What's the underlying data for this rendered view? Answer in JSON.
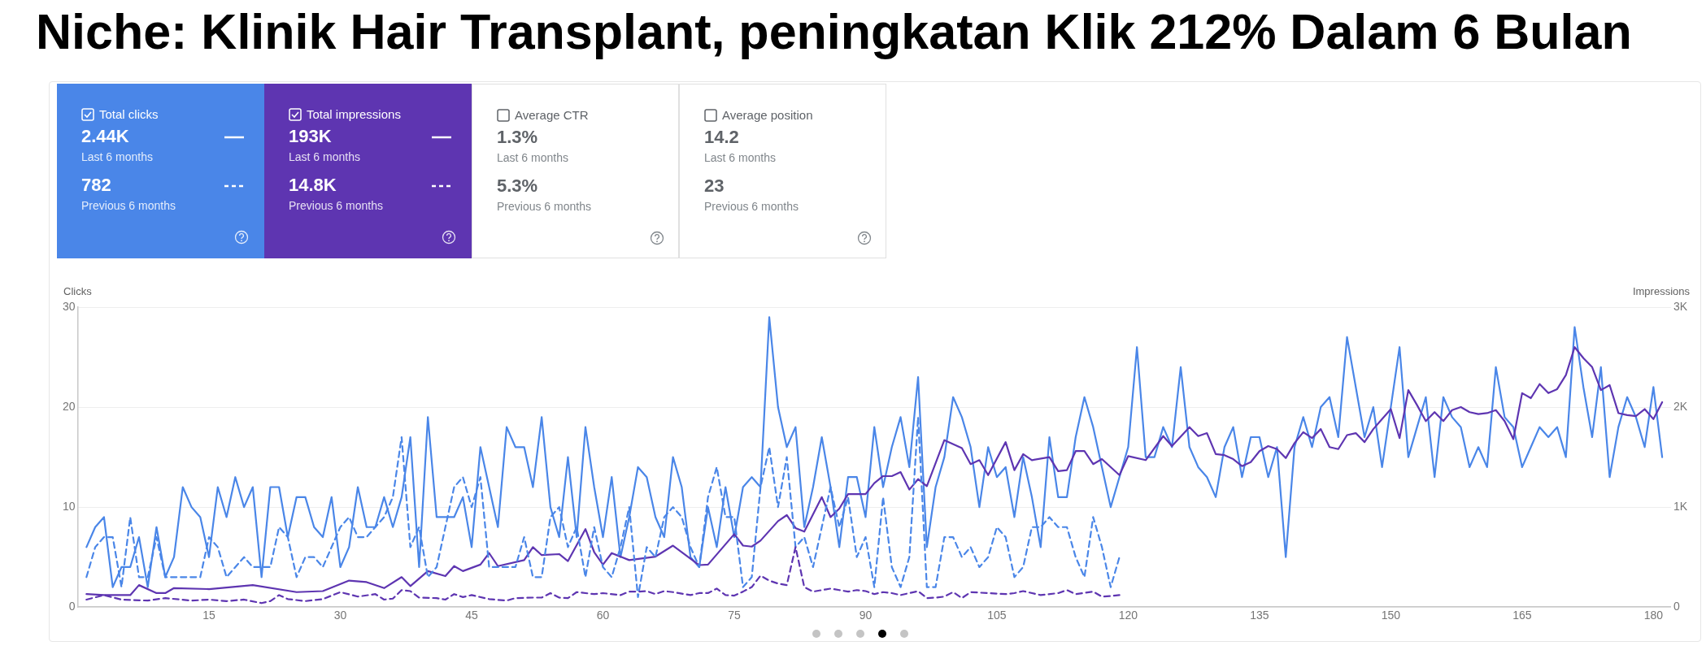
{
  "chart_data": [
    {
      "type": "other",
      "title": "Niche: Klinik Hair Transplant, peningkatan Klik 212% Dalam 6 Bulan",
      "categories": [
        "Total clicks",
        "Total impressions",
        "Average CTR",
        "Average position"
      ],
      "colors": [
        "#4a86e8",
        "#5e35b1",
        "#ffffff",
        "#ffffff"
      ],
      "annotations": [
        "2.44K",
        "Last 6 months",
        "782",
        "Previous 6 months",
        "193K",
        "Last 6 months",
        "14.8K",
        "Previous 6 months",
        "1.3%",
        "Last 6 months",
        "5.3%",
        "Previous 6 months",
        "14.2",
        "Last 6 months",
        "23",
        "Previous 6 months"
      ]
    },
    {
      "type": "line",
      "ylabel": "Clicks",
      "y2label": "Impressions",
      "xlim": [
        0,
        182
      ],
      "xticks": [
        15,
        30,
        45,
        60,
        75,
        90,
        105,
        120,
        135,
        150,
        165,
        180
      ],
      "ylim": [
        0,
        30
      ],
      "yticks": [
        0,
        10,
        20,
        30
      ],
      "y2lim": [
        0,
        3000
      ],
      "y2ticks": [
        0,
        {
          "value": 1000,
          "label": "1K"
        },
        {
          "value": 2000,
          "label": "2K"
        },
        {
          "value": 3000,
          "label": "3K"
        }
      ],
      "grid": "y",
      "marker": "none",
      "series": [
        {
          "color": "#5e35b1",
          "axis": "y2",
          "line_style": "dashed",
          "x": [
            1,
            3,
            5,
            8,
            10,
            13,
            15,
            17,
            19,
            21,
            22,
            23,
            24,
            26,
            28,
            30,
            32,
            34,
            35,
            36,
            37,
            38,
            39,
            41,
            42,
            43,
            44,
            45,
            47,
            49,
            50,
            52,
            53,
            54,
            55,
            56,
            57,
            59,
            60,
            62,
            63,
            64,
            65,
            66,
            67,
            68,
            70,
            71,
            72,
            73,
            74,
            75,
            76,
            77,
            78,
            79,
            80,
            81,
            82,
            83,
            84,
            85,
            86,
            87,
            88,
            89,
            90,
            91,
            92,
            93,
            94,
            95,
            96,
            97,
            98,
            99,
            100,
            101,
            102,
            104,
            106,
            107,
            108,
            110,
            112,
            113,
            114,
            116,
            117,
            118,
            119
          ],
          "values": [
            75,
            120,
            75,
            65,
            90,
            65,
            75,
            60,
            75,
            40,
            60,
            120,
            80,
            60,
            80,
            150,
            105,
            130,
            75,
            85,
            170,
            160,
            95,
            90,
            75,
            130,
            100,
            120,
            80,
            65,
            90,
            95,
            95,
            140,
            95,
            90,
            150,
            130,
            140,
            120,
            155,
            155,
            160,
            130,
            160,
            150,
            120,
            140,
            140,
            185,
            120,
            115,
            155,
            200,
            315,
            265,
            235,
            220,
            600,
            200,
            155,
            170,
            185,
            170,
            155,
            170,
            160,
            130,
            150,
            140,
            120,
            140,
            160,
            90,
            95,
            105,
            150,
            90,
            150,
            140,
            130,
            140,
            160,
            120,
            140,
            170,
            130,
            155,
            105,
            110,
            120
          ]
        },
        {
          "color": "#4a86e8",
          "line_style": "dashed",
          "x": [
            1,
            2,
            3,
            4,
            5,
            6,
            7,
            8,
            9,
            10,
            11,
            14,
            15,
            16,
            17,
            19,
            20,
            22,
            23,
            24,
            25,
            26,
            27,
            28,
            30,
            31,
            32,
            33,
            35,
            36,
            37,
            38,
            39,
            40,
            41,
            43,
            44,
            45,
            46,
            47,
            48,
            49,
            50,
            51,
            52,
            53,
            54,
            55,
            56,
            57,
            58,
            59,
            60,
            61,
            62,
            63,
            64,
            65,
            66,
            67,
            68,
            69,
            70,
            71,
            72,
            73,
            74,
            75,
            76,
            77,
            78,
            79,
            80,
            81,
            82,
            83,
            84,
            85,
            86,
            87,
            88,
            89,
            90,
            91,
            92,
            93,
            94,
            95,
            96,
            97,
            98,
            99,
            100,
            101,
            102,
            103,
            104,
            105,
            106,
            107,
            108,
            109,
            110,
            111,
            112,
            113,
            114,
            115,
            116,
            117,
            118,
            119
          ],
          "values": [
            3,
            6,
            7,
            7,
            2,
            9,
            3,
            3,
            7,
            3,
            3,
            3,
            7,
            6,
            3,
            5,
            4,
            4,
            8,
            7,
            3,
            5,
            5,
            4,
            8,
            9,
            7,
            7,
            9,
            11,
            17,
            6,
            8,
            3,
            4,
            12,
            13,
            10,
            13,
            4,
            4,
            4,
            4,
            7,
            3,
            3,
            9,
            10,
            6,
            8,
            3,
            8,
            4,
            3,
            6,
            10,
            1,
            6,
            5,
            9,
            10,
            9,
            6,
            4,
            11,
            14,
            9,
            9,
            2,
            3,
            12,
            16,
            10,
            15,
            6,
            7,
            4,
            8,
            12,
            8,
            11,
            5,
            7,
            2,
            11,
            4,
            2,
            5,
            19,
            2,
            2,
            7,
            7,
            5,
            6,
            4,
            5,
            8,
            7,
            3,
            4,
            8,
            8,
            9,
            8,
            8,
            5,
            3,
            9,
            6,
            2,
            5
          ]
        },
        {
          "color": "#5e35b1",
          "axis": "y2",
          "line_style": "solid",
          "x": [
            1,
            3,
            6,
            7,
            9,
            10,
            11,
            15,
            20,
            25,
            28,
            31,
            33,
            35,
            37,
            38,
            40,
            42,
            43,
            44,
            46,
            47,
            48,
            51,
            52,
            53,
            55,
            56,
            58,
            59,
            60,
            61,
            63,
            66,
            68,
            71,
            72,
            75,
            76,
            77,
            78,
            80,
            81,
            82,
            83,
            85,
            86,
            87,
            88,
            90,
            91,
            92,
            93,
            94,
            95,
            96,
            97,
            99,
            101,
            102,
            103,
            104,
            106,
            107,
            108,
            109,
            111,
            112,
            113,
            114,
            115,
            116,
            117,
            119,
            120,
            122,
            124,
            125,
            127,
            128,
            129,
            130,
            131,
            132,
            133,
            134,
            135,
            136,
            137,
            138,
            139,
            140,
            141,
            142,
            143,
            144,
            145,
            146,
            147,
            148,
            149,
            150,
            151,
            152,
            153,
            154,
            155,
            156,
            157,
            158,
            159,
            160,
            161,
            162,
            163,
            164,
            165,
            166,
            167,
            168,
            169,
            170,
            171,
            172,
            173,
            174,
            175,
            176,
            177,
            178,
            179,
            180,
            181
          ],
          "values": [
            130,
            120,
            120,
            220,
            140,
            140,
            190,
            180,
            220,
            150,
            160,
            265,
            250,
            190,
            300,
            210,
            360,
            310,
            410,
            360,
            425,
            540,
            410,
            470,
            600,
            520,
            530,
            460,
            780,
            550,
            425,
            540,
            470,
            505,
            615,
            420,
            425,
            730,
            615,
            605,
            665,
            860,
            920,
            790,
            755,
            1100,
            900,
            985,
            1130,
            1130,
            1240,
            1310,
            1310,
            1350,
            1175,
            1280,
            1210,
            1670,
            1590,
            1430,
            1470,
            1320,
            1650,
            1370,
            1530,
            1470,
            1500,
            1360,
            1370,
            1560,
            1560,
            1430,
            1480,
            1320,
            1510,
            1470,
            1710,
            1610,
            1800,
            1710,
            1740,
            1530,
            1520,
            1480,
            1410,
            1450,
            1560,
            1610,
            1580,
            1490,
            1640,
            1750,
            1690,
            1780,
            1600,
            1580,
            1720,
            1740,
            1650,
            1780,
            1880,
            1980,
            1690,
            2170,
            2020,
            1860,
            1950,
            1860,
            1970,
            2000,
            1950,
            1930,
            1940,
            1970,
            1860,
            1680,
            2140,
            2090,
            2230,
            2140,
            2180,
            2320,
            2600,
            2490,
            2400,
            2170,
            2220,
            1940,
            1920,
            1910,
            1980,
            1880,
            2050
          ]
        },
        {
          "color": "#4a86e8",
          "line_style": "solid",
          "x": [
            1,
            2,
            3,
            4,
            5,
            6,
            7,
            8,
            9,
            10,
            11,
            12,
            13,
            14,
            15,
            16,
            17,
            18,
            19,
            20,
            21,
            22,
            23,
            24,
            25,
            26,
            27,
            28,
            29,
            30,
            31,
            32,
            33,
            34,
            35,
            36,
            37,
            38,
            39,
            40,
            41,
            42,
            43,
            44,
            45,
            46,
            47,
            48,
            49,
            50,
            51,
            52,
            53,
            54,
            55,
            56,
            57,
            58,
            59,
            60,
            61,
            62,
            63,
            64,
            65,
            66,
            67,
            68,
            69,
            70,
            71,
            72,
            73,
            74,
            75,
            76,
            77,
            78,
            79,
            80,
            81,
            82,
            83,
            84,
            85,
            86,
            87,
            88,
            89,
            90,
            91,
            92,
            93,
            94,
            95,
            96,
            97,
            98,
            99,
            100,
            101,
            102,
            103,
            104,
            105,
            106,
            107,
            108,
            109,
            110,
            111,
            112,
            113,
            114,
            115,
            116,
            117,
            118,
            119,
            120,
            121,
            122,
            123,
            124,
            125,
            126,
            127,
            128,
            129,
            130,
            131,
            132,
            133,
            134,
            135,
            136,
            137,
            138,
            139,
            140,
            141,
            142,
            143,
            144,
            145,
            146,
            147,
            148,
            149,
            150,
            151,
            152,
            153,
            154,
            155,
            156,
            157,
            158,
            159,
            160,
            161,
            162,
            163,
            164,
            165,
            166,
            167,
            168,
            169,
            170,
            171,
            172,
            173,
            174,
            175,
            176,
            177,
            178,
            179,
            180,
            181
          ],
          "values": [
            6,
            8,
            9,
            2,
            4,
            4,
            7,
            2,
            8,
            3,
            5,
            12,
            10,
            9,
            5,
            12,
            9,
            13,
            10,
            12,
            3,
            12,
            12,
            7,
            11,
            11,
            8,
            7,
            11,
            4,
            6,
            12,
            8,
            8,
            11,
            8,
            11,
            17,
            4,
            19,
            9,
            9,
            9,
            11,
            6,
            16,
            12,
            8,
            18,
            16,
            16,
            12,
            19,
            10,
            7,
            15,
            7,
            18,
            12,
            7,
            13,
            5,
            9,
            14,
            13,
            9,
            7,
            15,
            12,
            5,
            4,
            10,
            6,
            12,
            7,
            12,
            13,
            12,
            29,
            20,
            16,
            18,
            8,
            12,
            17,
            12,
            6,
            13,
            13,
            9,
            18,
            12,
            16,
            19,
            14,
            23,
            6,
            12,
            15,
            21,
            19,
            16,
            10,
            16,
            13,
            14,
            9,
            15,
            11,
            6,
            17,
            11,
            11,
            17,
            21,
            18,
            14,
            10,
            13,
            16,
            26,
            15,
            15,
            18,
            16,
            24,
            16,
            14,
            13,
            11,
            16,
            18,
            13,
            17,
            17,
            13,
            16,
            5,
            16,
            19,
            16,
            20,
            21,
            17,
            27,
            22,
            17,
            20,
            14,
            20,
            26,
            15,
            18,
            21,
            13,
            21,
            19,
            18,
            14,
            16,
            14,
            24,
            19,
            18,
            14,
            16,
            18,
            17,
            18,
            15,
            28,
            22,
            17,
            24,
            13,
            18,
            21,
            19,
            16,
            22,
            15
          ]
        }
      ]
    }
  ]
}
